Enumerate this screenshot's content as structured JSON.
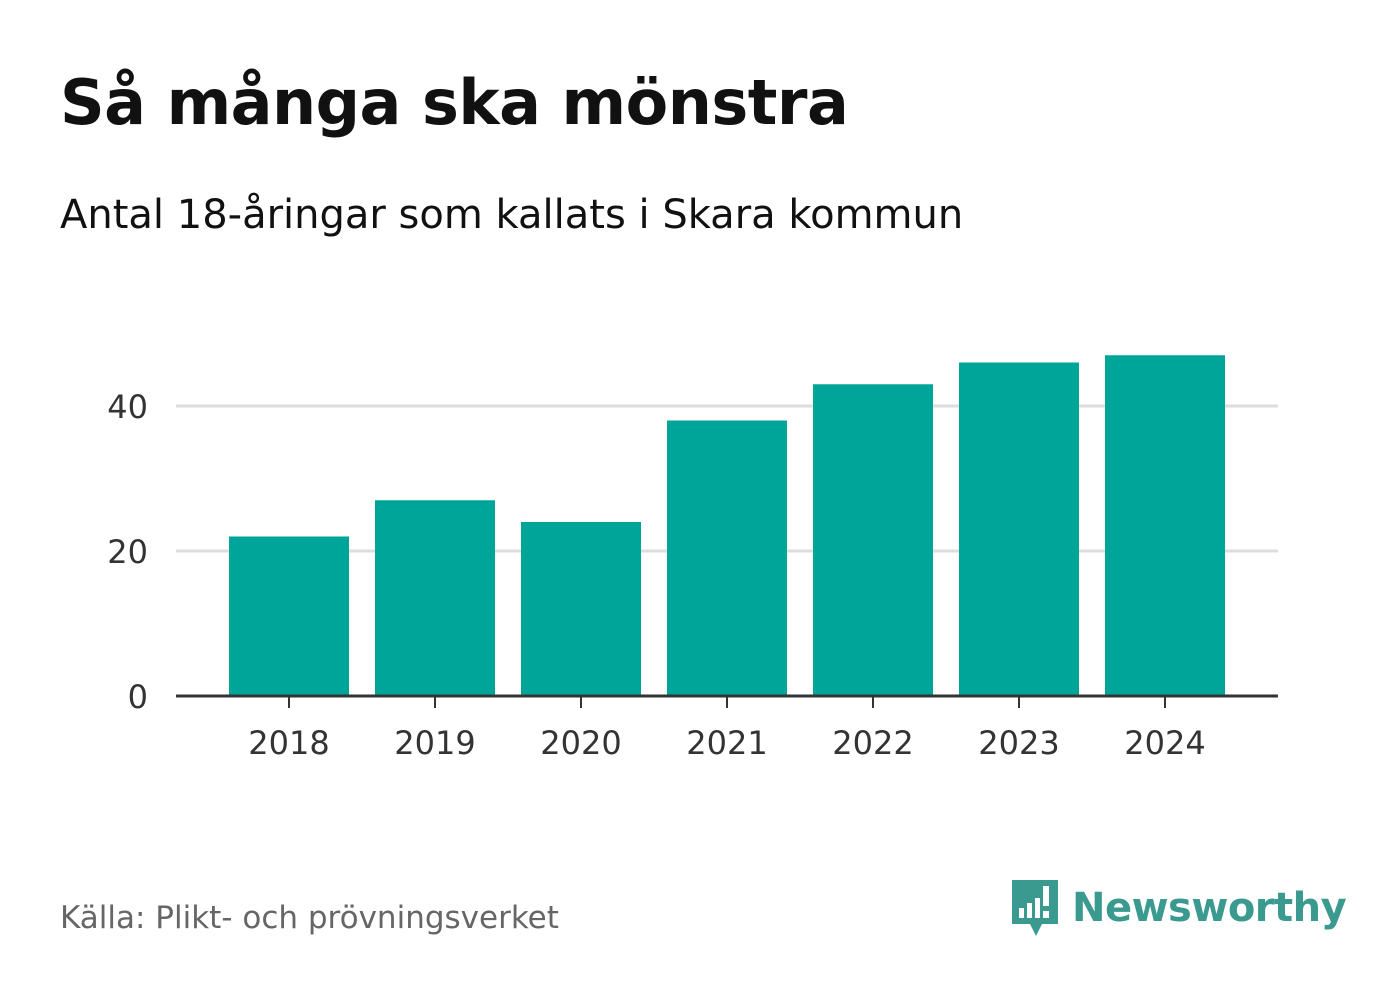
{
  "title": "Så många ska mönstra",
  "subtitle": "Antal 18-åringar som kallats i Skara kommun",
  "source": "Källa: Plikt- och prövningsverket",
  "brand": "Newsworthy",
  "colors": {
    "bar": "#00a59a",
    "grid": "#dddddd",
    "axis": "#333333",
    "brand": "#3a9a8f"
  },
  "chart_data": {
    "type": "bar",
    "categories": [
      "2018",
      "2019",
      "2020",
      "2021",
      "2022",
      "2023",
      "2024"
    ],
    "values": [
      22,
      27,
      24,
      38,
      43,
      46,
      47
    ],
    "ylim": [
      0,
      52
    ],
    "yticks": [
      0,
      20,
      40
    ],
    "grid": true
  }
}
